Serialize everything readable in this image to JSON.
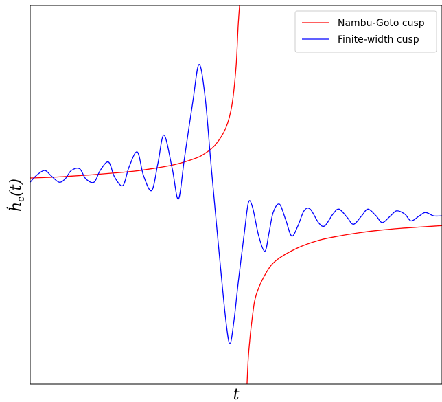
{
  "chart_data": {
    "type": "line",
    "title": "",
    "xlabel": "t",
    "ylabel": "ḣc(t)",
    "ylabel_parts": {
      "base": "ḣ",
      "sub": "c",
      "rest": "(t)"
    },
    "xlim": [
      -1.0,
      1.0
    ],
    "ylim": [
      -1.1,
      1.15
    ],
    "grid": false,
    "legend_position": "top-right",
    "cusp_time": 0.036,
    "series": [
      {
        "name": "Nambu-Goto cusp",
        "color": "#ff0000",
        "x": [
          -1.0,
          -0.9,
          -0.8,
          -0.7,
          -0.6,
          -0.5,
          -0.4,
          -0.3,
          -0.2,
          -0.15,
          -0.1,
          -0.05,
          -0.02,
          0.0,
          0.01,
          0.02,
          0.03,
          0.05,
          0.06,
          0.08,
          0.1,
          0.15,
          0.2,
          0.3,
          0.4,
          0.5,
          0.6,
          0.7,
          0.8,
          0.9,
          1.0
        ],
        "y": [
          0.125,
          0.129,
          0.136,
          0.144,
          0.154,
          0.165,
          0.182,
          0.204,
          0.241,
          0.272,
          0.323,
          0.422,
          0.56,
          0.79,
          1.03,
          1.2,
          null,
          -1.2,
          -0.93,
          -0.69,
          -0.56,
          -0.43,
          -0.36,
          -0.29,
          -0.246,
          -0.22,
          -0.2,
          -0.185,
          -0.174,
          -0.166,
          -0.158
        ]
      },
      {
        "name": "Finite-width cusp",
        "color": "#0000ff",
        "x": [
          -1.0,
          -0.97,
          -0.93,
          -0.9,
          -0.86,
          -0.83,
          -0.8,
          -0.76,
          -0.73,
          -0.69,
          -0.66,
          -0.62,
          -0.59,
          -0.55,
          -0.52,
          -0.48,
          -0.45,
          -0.41,
          -0.38,
          -0.35,
          -0.31,
          -0.28,
          -0.25,
          -0.21,
          -0.18,
          -0.15,
          -0.12,
          -0.08,
          -0.05,
          -0.03,
          -0.01,
          0.01,
          0.04,
          0.06,
          0.08,
          0.11,
          0.14,
          0.16,
          0.18,
          0.21,
          0.24,
          0.27,
          0.3,
          0.33,
          0.36,
          0.4,
          0.43,
          0.47,
          0.5,
          0.54,
          0.57,
          0.61,
          0.64,
          0.68,
          0.71,
          0.75,
          0.78,
          0.82,
          0.85,
          0.89,
          0.92,
          0.96,
          1.0
        ],
        "y": [
          0.1,
          0.14,
          0.17,
          0.14,
          0.1,
          0.12,
          0.17,
          0.18,
          0.12,
          0.1,
          0.17,
          0.22,
          0.13,
          0.08,
          0.19,
          0.28,
          0.14,
          0.05,
          0.21,
          0.38,
          0.18,
          0.0,
          0.25,
          0.58,
          0.8,
          0.6,
          0.18,
          -0.35,
          -0.72,
          -0.86,
          -0.72,
          -0.5,
          -0.2,
          -0.02,
          -0.05,
          -0.22,
          -0.31,
          -0.2,
          -0.08,
          -0.03,
          -0.12,
          -0.22,
          -0.16,
          -0.07,
          -0.06,
          -0.14,
          -0.16,
          -0.09,
          -0.06,
          -0.11,
          -0.15,
          -0.1,
          -0.06,
          -0.1,
          -0.14,
          -0.1,
          -0.07,
          -0.09,
          -0.13,
          -0.1,
          -0.08,
          -0.1,
          -0.1
        ]
      }
    ]
  }
}
